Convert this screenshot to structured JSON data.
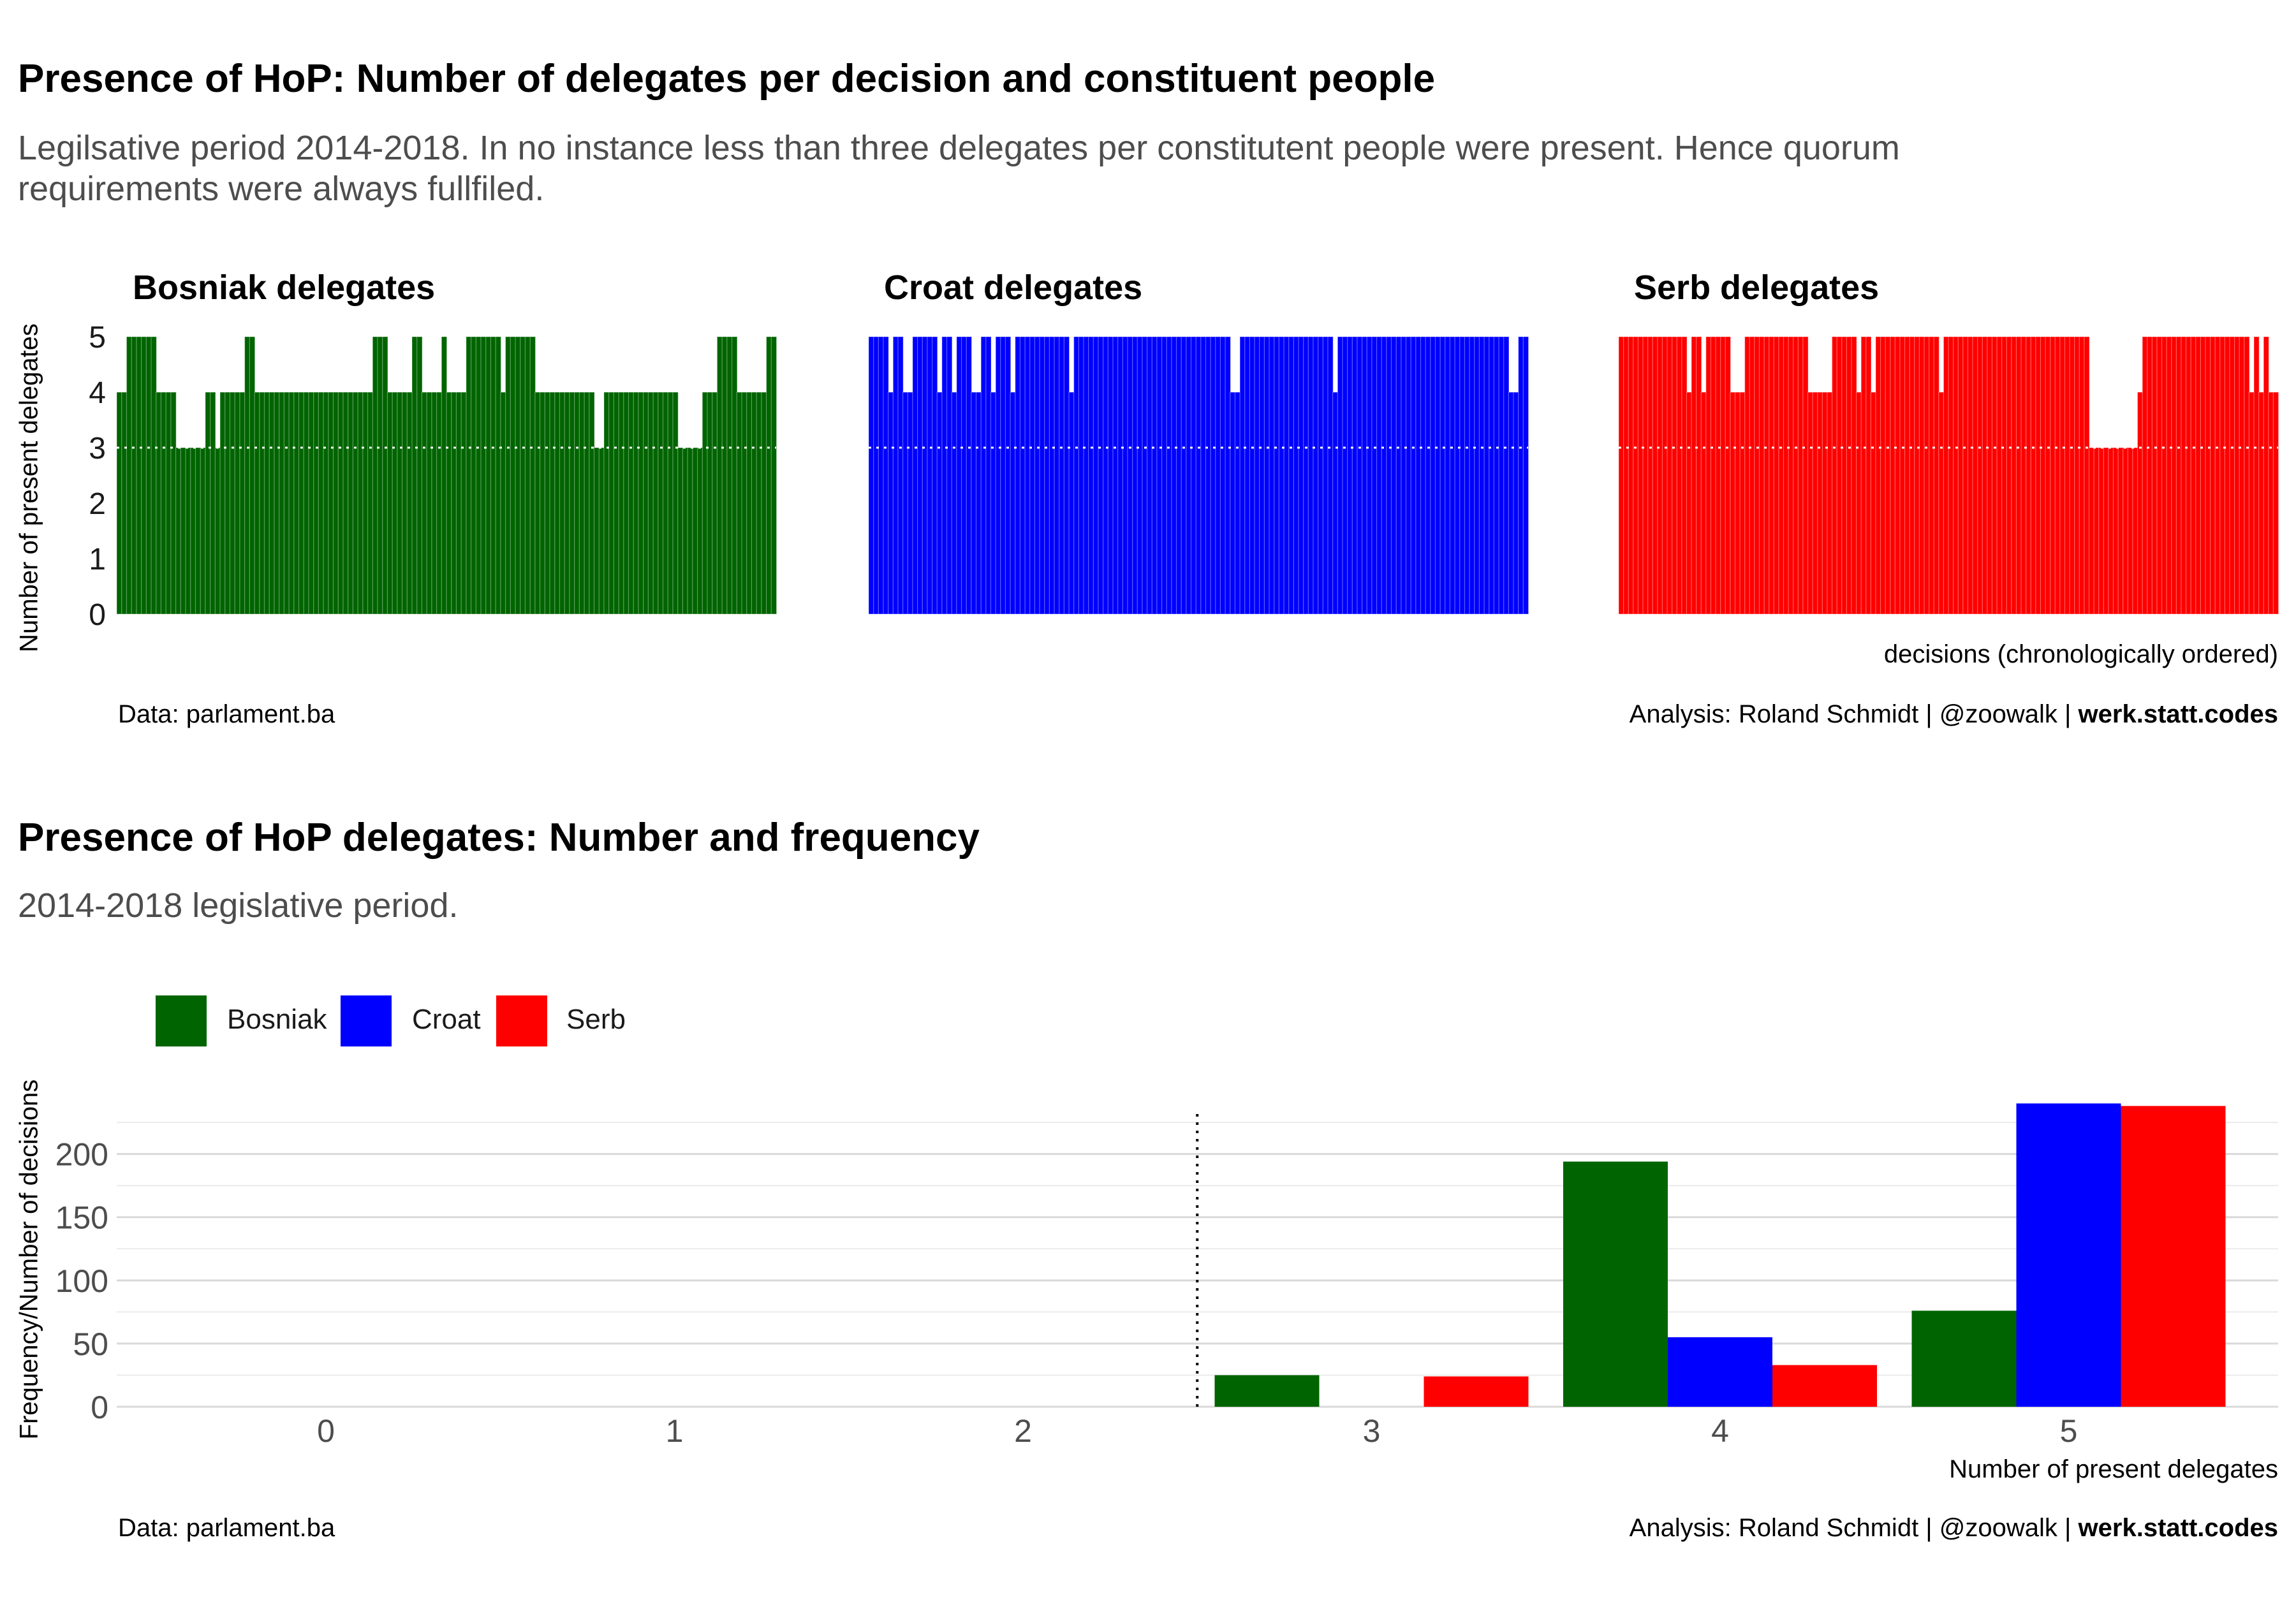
{
  "top": {
    "title": "Presence of HoP: Number of delegates per decision and constituent people",
    "subtitle": "Legilsative period 2014-2018. In no instance less than three delegates per constitutent people were present. Hence quorum requirements were always fullfiled.",
    "caption_left": "Data: parlament.ba",
    "caption_right_plain": "Analysis: Roland Schmidt | @zoowalk | ",
    "caption_right_bold": "werk.statt.codes"
  },
  "bottom": {
    "title": "Presence of HoP delegates: Number and frequency",
    "subtitle": "2014-2018 legislative period.",
    "caption_left": "Data: parlament.ba",
    "caption_right_plain": "Analysis: Roland Schmidt | @zoowalk | ",
    "caption_right_bold": "werk.statt.codes"
  },
  "colors": {
    "Bosniak": "#006400",
    "Croat": "#0000ff",
    "Serb": "#ff0000"
  },
  "chart_data": [
    {
      "type": "bar",
      "chart": "faceted column chart",
      "ylabel": "Number of present delegates",
      "xlabel": "decisions (chronologically ordered)",
      "ylim": [
        0,
        5
      ],
      "yticks": [
        0,
        1,
        2,
        3,
        4,
        5
      ],
      "reference_line": 3,
      "facets": [
        {
          "name": "Bosniak delegates",
          "color": "#006400",
          "values": [
            4,
            4,
            5,
            5,
            5,
            5,
            5,
            5,
            4,
            4,
            4,
            4,
            3,
            3,
            3,
            3,
            3,
            3,
            4,
            4,
            3,
            4,
            4,
            4,
            4,
            4,
            5,
            5,
            4,
            4,
            4,
            4,
            4,
            4,
            4,
            4,
            4,
            4,
            4,
            4,
            4,
            4,
            4,
            4,
            4,
            4,
            4,
            4,
            4,
            4,
            4,
            4,
            5,
            5,
            5,
            4,
            4,
            4,
            4,
            4,
            5,
            5,
            4,
            4,
            4,
            4,
            5,
            4,
            4,
            4,
            4,
            5,
            5,
            5,
            5,
            5,
            5,
            5,
            4,
            5,
            5,
            5,
            5,
            5,
            5,
            4,
            4,
            4,
            4,
            4,
            4,
            4,
            4,
            4,
            4,
            4,
            4,
            3,
            3,
            4,
            4,
            4,
            4,
            4,
            4,
            4,
            4,
            4,
            4,
            4,
            4,
            4,
            4,
            4,
            3,
            3,
            3,
            3,
            3,
            4,
            4,
            4,
            5,
            5,
            5,
            5,
            4,
            4,
            4,
            4,
            4,
            4,
            5,
            5
          ]
        },
        {
          "name": "Croat delegates",
          "color": "#0000ff",
          "values": [
            5,
            5,
            5,
            5,
            4,
            5,
            5,
            4,
            4,
            5,
            5,
            5,
            5,
            5,
            4,
            5,
            5,
            4,
            5,
            5,
            5,
            4,
            4,
            5,
            5,
            4,
            5,
            5,
            5,
            4,
            5,
            5,
            5,
            5,
            5,
            5,
            5,
            5,
            5,
            5,
            5,
            4,
            5,
            5,
            5,
            5,
            5,
            5,
            5,
            5,
            5,
            5,
            5,
            5,
            5,
            5,
            5,
            5,
            5,
            5,
            5,
            5,
            5,
            5,
            5,
            5,
            5,
            5,
            5,
            5,
            5,
            5,
            5,
            5,
            4,
            4,
            5,
            5,
            5,
            5,
            5,
            5,
            5,
            5,
            5,
            5,
            5,
            5,
            5,
            5,
            5,
            5,
            5,
            5,
            5,
            4,
            5,
            5,
            5,
            5,
            5,
            5,
            5,
            5,
            5,
            5,
            5,
            5,
            5,
            5,
            5,
            5,
            5,
            5,
            5,
            5,
            5,
            5,
            5,
            5,
            5,
            5,
            5,
            5,
            5,
            5,
            5,
            5,
            5,
            5,
            5,
            4,
            4,
            5,
            5
          ]
        },
        {
          "name": "Serb delegates",
          "color": "#ff0000",
          "values": [
            5,
            5,
            5,
            5,
            5,
            5,
            5,
            5,
            5,
            5,
            5,
            5,
            5,
            5,
            4,
            5,
            5,
            4,
            5,
            5,
            5,
            5,
            5,
            4,
            4,
            4,
            5,
            5,
            5,
            5,
            5,
            5,
            5,
            5,
            5,
            5,
            5,
            5,
            5,
            4,
            4,
            4,
            4,
            4,
            5,
            5,
            5,
            5,
            5,
            4,
            5,
            5,
            4,
            5,
            5,
            5,
            5,
            5,
            5,
            5,
            5,
            5,
            5,
            5,
            5,
            5,
            4,
            5,
            5,
            5,
            5,
            5,
            5,
            5,
            5,
            5,
            5,
            5,
            5,
            5,
            5,
            5,
            5,
            5,
            5,
            5,
            5,
            5,
            5,
            5,
            5,
            5,
            5,
            5,
            5,
            5,
            5,
            3,
            3,
            3,
            3,
            3,
            3,
            3,
            3,
            3,
            3,
            4,
            5,
            5,
            5,
            5,
            5,
            5,
            5,
            5,
            5,
            5,
            5,
            5,
            5,
            5,
            5,
            5,
            5,
            5,
            5,
            5,
            5,
            5,
            4,
            5,
            4,
            5,
            4,
            4
          ]
        }
      ],
      "caption_left": "Data: parlament.ba",
      "caption_right": "Analysis: Roland Schmidt | @zoowalk | werk.statt.codes"
    },
    {
      "type": "bar",
      "chart": "grouped bar chart",
      "title": "Presence of HoP delegates: Number and frequency",
      "subtitle": "2014-2018 legislative period.",
      "xlabel": "Number of present delegates",
      "ylabel": "Frequency/Number of decisions",
      "categories": [
        "0",
        "1",
        "2",
        "3",
        "4",
        "5"
      ],
      "ylim": [
        0,
        240
      ],
      "yticks": [
        0,
        50,
        100,
        150,
        200
      ],
      "legend": "top-left",
      "reference_line_x": 2.5,
      "series": [
        {
          "name": "Bosniak",
          "color": "#006400",
          "values": [
            0,
            0,
            0,
            25,
            194,
            76
          ]
        },
        {
          "name": "Croat",
          "color": "#0000ff",
          "values": [
            0,
            0,
            0,
            0,
            55,
            240
          ]
        },
        {
          "name": "Serb",
          "color": "#ff0000",
          "values": [
            0,
            0,
            0,
            24,
            33,
            238
          ]
        }
      ],
      "caption_left": "Data: parlament.ba",
      "caption_right": "Analysis: Roland Schmidt | @zoowalk | werk.statt.codes"
    }
  ]
}
